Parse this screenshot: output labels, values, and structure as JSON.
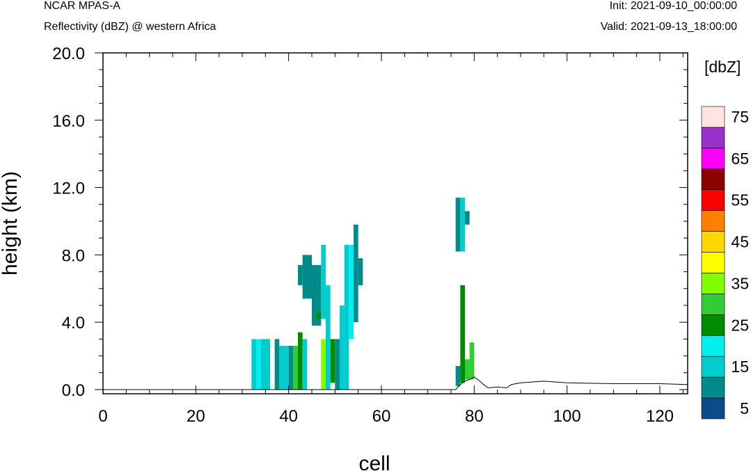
{
  "header": {
    "model": "NCAR MPAS-A",
    "field": "Reflectivity (dBZ) @ western Africa",
    "init": "Init: 2021-09-10_00:00:00",
    "valid": "Valid: 2021-09-13_18:00:00"
  },
  "chart_data": {
    "type": "heatmap",
    "title": "Reflectivity (dBZ) @ western Africa",
    "xlabel": "cell",
    "ylabel": "height (km)",
    "xlim": [
      0,
      126
    ],
    "ylim": [
      -0.25,
      20
    ],
    "x_ticks": [
      "0",
      "20",
      "40",
      "60",
      "80",
      "100",
      "120"
    ],
    "x_tick_values": [
      0,
      20,
      40,
      60,
      80,
      100,
      120
    ],
    "y_ticks": [
      "0.0",
      "4.0",
      "8.0",
      "12.0",
      "16.0",
      "20.0"
    ],
    "y_tick_values": [
      0,
      4,
      8,
      12,
      16,
      20
    ],
    "colorbar": {
      "title": "[dbZ]",
      "levels": [
        0,
        5,
        10,
        15,
        20,
        25,
        30,
        35,
        40,
        45,
        50,
        55,
        60,
        65,
        70,
        75
      ],
      "labels": [
        "5",
        "15",
        "25",
        "35",
        "45",
        "55",
        "65",
        "75"
      ],
      "colors": [
        "#0d4a8a",
        "#008b8b",
        "#00cccc",
        "#00f0f0",
        "#008b00",
        "#32cd32",
        "#7fff00",
        "#ffff00",
        "#ffd700",
        "#ff7f00",
        "#ff0000",
        "#8b0000",
        "#ff00ff",
        "#9932cc",
        "#ffe4e1"
      ]
    },
    "cells": [
      {
        "x": [
          32,
          33
        ],
        "y": [
          0,
          3.0
        ],
        "dbz": 10
      },
      {
        "x": [
          33,
          34
        ],
        "y": [
          0,
          3.0
        ],
        "dbz": 15
      },
      {
        "x": [
          34,
          36
        ],
        "y": [
          0,
          3.0
        ],
        "dbz": 10
      },
      {
        "x": [
          37,
          38
        ],
        "y": [
          0,
          3.0
        ],
        "dbz": 5
      },
      {
        "x": [
          38,
          39
        ],
        "y": [
          0,
          2.6
        ],
        "dbz": 10
      },
      {
        "x": [
          39,
          40
        ],
        "y": [
          0,
          2.6
        ],
        "dbz": 10
      },
      {
        "x": [
          40,
          41
        ],
        "y": [
          0,
          2.6
        ],
        "dbz": 5
      },
      {
        "x": [
          41,
          42
        ],
        "y": [
          0,
          2.6
        ],
        "dbz": 25
      },
      {
        "x": [
          42,
          43
        ],
        "y": [
          0,
          3.4
        ],
        "dbz": 20
      },
      {
        "x": [
          43,
          44
        ],
        "y": [
          0,
          3.0
        ],
        "dbz": 10
      },
      {
        "x": [
          43,
          45
        ],
        "y": [
          5.4,
          8.0
        ],
        "dbz": 5
      },
      {
        "x": [
          42,
          43
        ],
        "y": [
          6.2,
          7.4
        ],
        "dbz": 5
      },
      {
        "x": [
          45,
          47
        ],
        "y": [
          3.8,
          7.4
        ],
        "dbz": 5
      },
      {
        "x": [
          46,
          47
        ],
        "y": [
          4.2,
          4.6
        ],
        "dbz": 20
      },
      {
        "x": [
          47,
          48
        ],
        "y": [
          0,
          3.0
        ],
        "dbz": 30
      },
      {
        "x": [
          47,
          48
        ],
        "y": [
          4.2,
          8.6
        ],
        "dbz": 10
      },
      {
        "x": [
          48,
          49
        ],
        "y": [
          0,
          6.2
        ],
        "dbz": 10
      },
      {
        "x": [
          49,
          50
        ],
        "y": [
          0.4,
          3.0
        ],
        "dbz": 20
      },
      {
        "x": [
          50,
          51
        ],
        "y": [
          0,
          3.0
        ],
        "dbz": 5
      },
      {
        "x": [
          51,
          52
        ],
        "y": [
          0,
          5.0
        ],
        "dbz": 10
      },
      {
        "x": [
          52,
          53
        ],
        "y": [
          0,
          8.6
        ],
        "dbz": 10
      },
      {
        "x": [
          53,
          54
        ],
        "y": [
          3.0,
          8.6
        ],
        "dbz": 15
      },
      {
        "x": [
          54,
          55
        ],
        "y": [
          4.0,
          9.8
        ],
        "dbz": 5
      },
      {
        "x": [
          55,
          56
        ],
        "y": [
          6.2,
          7.8
        ],
        "dbz": 5
      },
      {
        "x": [
          76,
          77
        ],
        "y": [
          0.2,
          1.4
        ],
        "dbz": 5
      },
      {
        "x": [
          76,
          77
        ],
        "y": [
          8.2,
          11.4
        ],
        "dbz": 5
      },
      {
        "x": [
          77,
          78
        ],
        "y": [
          0.4,
          6.2
        ],
        "dbz": 20
      },
      {
        "x": [
          77,
          78
        ],
        "y": [
          8.2,
          11.4
        ],
        "dbz": 10
      },
      {
        "x": [
          78,
          79
        ],
        "y": [
          0.6,
          1.8
        ],
        "dbz": 25
      },
      {
        "x": [
          79,
          80
        ],
        "y": [
          0.6,
          2.8
        ],
        "dbz": 25
      },
      {
        "x": [
          78,
          79
        ],
        "y": [
          9.8,
          10.6
        ],
        "dbz": 5
      }
    ],
    "terrain": {
      "x": [
        0,
        76,
        77,
        78,
        79,
        80,
        81,
        82,
        83,
        85,
        87,
        88,
        90,
        95,
        100,
        110,
        120,
        126
      ],
      "height": [
        0,
        0,
        0.3,
        0.5,
        0.6,
        0.75,
        0.55,
        0.3,
        0.1,
        0.15,
        0.1,
        0.3,
        0.4,
        0.5,
        0.4,
        0.35,
        0.35,
        0.3
      ]
    }
  }
}
